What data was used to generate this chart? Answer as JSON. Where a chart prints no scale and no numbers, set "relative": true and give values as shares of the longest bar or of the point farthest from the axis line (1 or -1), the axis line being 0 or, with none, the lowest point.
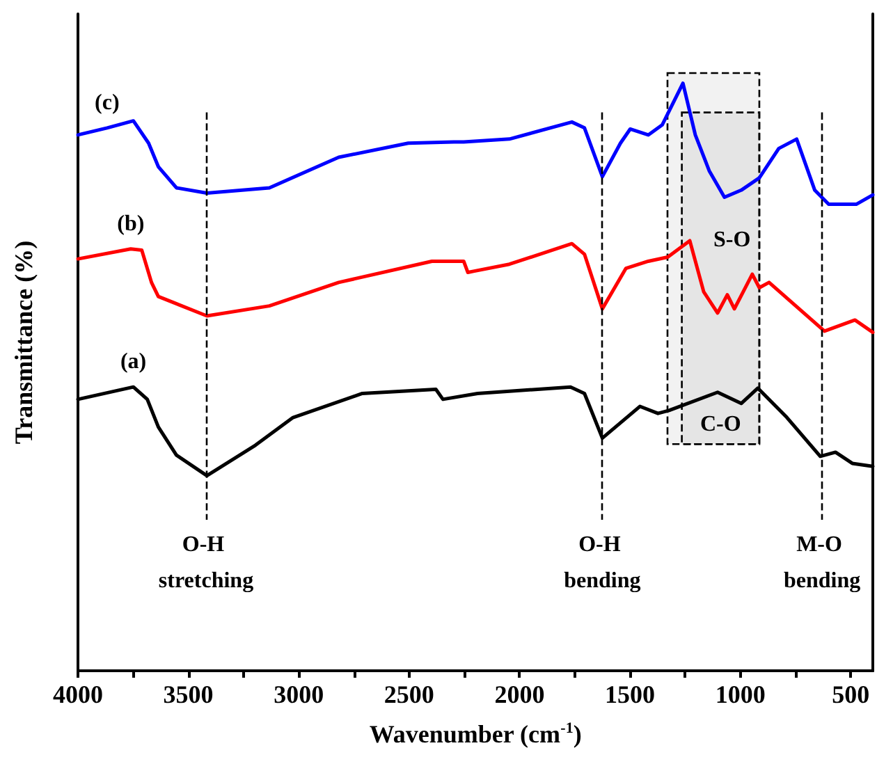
{
  "chart_data": {
    "type": "line",
    "xlabel": "Wavenumber (cm$^{-1}$)",
    "ylabel": "Transmittance (%)",
    "relative": true,
    "xlim": [
      4000,
      400
    ],
    "xticks": [
      4000,
      {
        "value": 3750,
        "label": null
      },
      3500,
      {
        "value": 3250,
        "label": null
      },
      3000,
      {
        "value": 2750,
        "label": null
      },
      2500,
      {
        "value": 2250,
        "label": null
      },
      2000,
      {
        "value": 1750,
        "label": null
      },
      1500,
      {
        "value": 1250,
        "label": null
      },
      1000,
      {
        "value": 750,
        "label": null
      },
      500
    ],
    "grid": false,
    "legend": false,
    "marker": "none",
    "line_style": "solid",
    "series": [
      {
        "name": "(a)",
        "color": "#000000",
        "x": [
          4000,
          3749,
          3686,
          3636,
          3554,
          3416,
          3196,
          3026,
          2712,
          2379,
          2347,
          2190,
          1769,
          1706,
          1625,
          1455,
          1373,
          1323,
          1103,
          996,
          921,
          789,
          638,
          569,
          493,
          400
        ],
        "values": [
          0.462,
          0.483,
          0.462,
          0.415,
          0.367,
          0.332,
          0.384,
          0.431,
          0.472,
          0.479,
          0.462,
          0.472,
          0.483,
          0.472,
          0.396,
          0.45,
          0.438,
          0.443,
          0.474,
          0.455,
          0.481,
          0.431,
          0.365,
          0.372,
          0.353,
          0.348
        ]
      },
      {
        "name": "(b)",
        "color": "#ff0000",
        "x": [
          4000,
          3761,
          3711,
          3667,
          3636,
          3416,
          3133,
          2819,
          2397,
          2253,
          2234,
          2209,
          2046,
          1763,
          1706,
          1625,
          1518,
          1417,
          1329,
          1229,
          1166,
          1103,
          1059,
          1027,
          946,
          914,
          870,
          619,
          481,
          400
        ],
        "values": [
          0.701,
          0.718,
          0.716,
          0.661,
          0.637,
          0.604,
          0.621,
          0.661,
          0.697,
          0.697,
          0.678,
          0.68,
          0.692,
          0.727,
          0.709,
          0.616,
          0.685,
          0.697,
          0.704,
          0.732,
          0.645,
          0.609,
          0.64,
          0.616,
          0.675,
          0.652,
          0.661,
          0.578,
          0.597,
          0.576
        ]
      },
      {
        "name": "(c)",
        "color": "#0000ff",
        "x": [
          4000,
          3868,
          3749,
          3680,
          3636,
          3554,
          3416,
          3133,
          2819,
          2504,
          2297,
          2253,
          2046,
          1763,
          1706,
          1625,
          1543,
          1499,
          1417,
          1354,
          1260,
          1204,
          1141,
          1072,
          996,
          914,
          826,
          745,
          663,
          600,
          475,
          400
        ],
        "values": [
          0.912,
          0.924,
          0.936,
          0.898,
          0.858,
          0.822,
          0.813,
          0.822,
          0.874,
          0.898,
          0.9,
          0.9,
          0.905,
          0.934,
          0.924,
          0.841,
          0.898,
          0.922,
          0.912,
          0.929,
          1.0,
          0.912,
          0.851,
          0.806,
          0.818,
          0.839,
          0.889,
          0.905,
          0.818,
          0.794,
          0.794,
          0.81
        ]
      }
    ],
    "ref_lines": [
      {
        "axis": "x",
        "value": 3420,
        "label": "O-H stretching",
        "line_style": "dashed",
        "color": "#000000"
      },
      {
        "axis": "x",
        "value": 1625,
        "label": "O-H bending",
        "line_style": "dashed",
        "color": "#000000"
      },
      {
        "axis": "x",
        "value": 630,
        "label": "M-O bending",
        "line_style": "dashed",
        "color": "#000000"
      }
    ],
    "bands": [
      {
        "axis": "x",
        "from": 1330,
        "to": 914,
        "label": "S-O"
      },
      {
        "axis": "x",
        "from": 1265,
        "to": 914,
        "label": "C-O"
      }
    ]
  }
}
